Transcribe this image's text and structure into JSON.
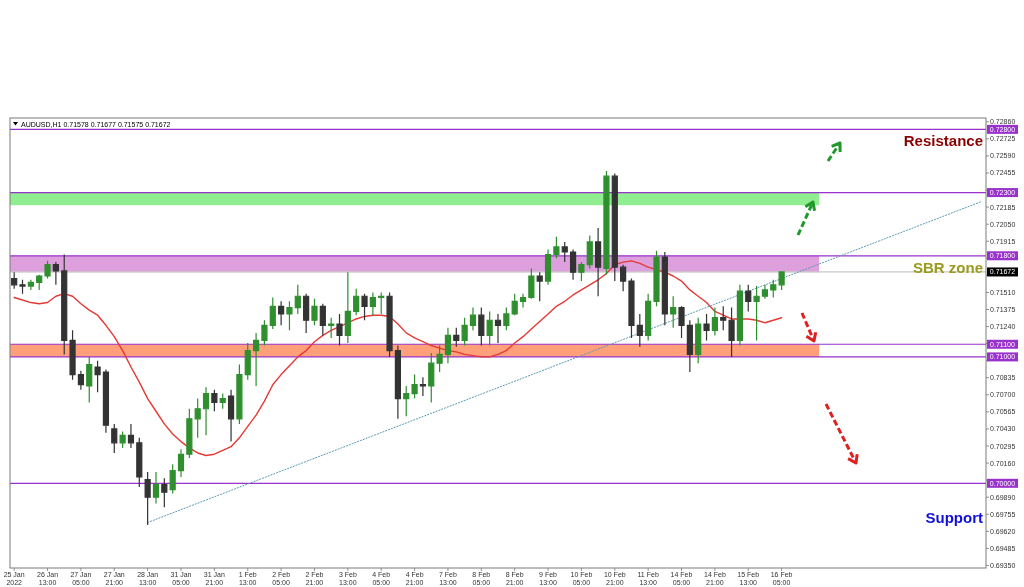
{
  "chart_data": {
    "type": "candlestick",
    "title": "AUDUSD,H1 0.71578 0.71677 0.71575 0.71672",
    "categories": [
      "25 Jan 2022",
      null,
      null,
      null,
      "26 Jan 13:00",
      null,
      null,
      null,
      "27 Jan 05:00",
      null,
      null,
      null,
      "27 Jan 21:00",
      null,
      null,
      null,
      "28 Jan 13:00",
      null,
      null,
      null,
      "31 Jan 05:00",
      null,
      null,
      null,
      "31 Jan 21:00",
      null,
      null,
      null,
      "1 Feb 13:00",
      null,
      null,
      null,
      "2 Feb 05:00",
      null,
      null,
      null,
      "2 Feb 21:00",
      null,
      null,
      null,
      "3 Feb 13:00",
      null,
      null,
      null,
      "4 Feb 05:00",
      null,
      null,
      null,
      "4 Feb 21:00",
      null,
      null,
      null,
      "7 Feb 13:00",
      null,
      null,
      null,
      "8 Feb 05:00",
      null,
      null,
      null,
      "8 Feb 21:00",
      null,
      null,
      null,
      "9 Feb 13:00",
      null,
      null,
      null,
      "10 Feb 05:00",
      null,
      null,
      null,
      "10 Feb 21:00",
      null,
      null,
      null,
      "11 Feb 13:00",
      null,
      null,
      null,
      "14 Feb 05:00",
      null,
      null,
      null,
      "14 Feb 21:00",
      null,
      null,
      null,
      "15 Feb 13:00",
      null,
      null,
      null,
      "16 Feb 05:00",
      null,
      null,
      null,
      null,
      null,
      null,
      null,
      null,
      null,
      null,
      null,
      null,
      null,
      null,
      null,
      null,
      null,
      null,
      null,
      null,
      null,
      null,
      null,
      null
    ],
    "ohlc": [
      [
        0.7162,
        0.7167,
        0.7154,
        0.7157
      ],
      [
        0.7157,
        0.7161,
        0.715,
        0.7156
      ],
      [
        0.7156,
        0.7161,
        0.7153,
        0.7159
      ],
      [
        0.7159,
        0.7165,
        0.7153,
        0.7164
      ],
      [
        0.7164,
        0.7176,
        0.7162,
        0.7173
      ],
      [
        0.7173,
        0.7175,
        0.7157,
        0.7168
      ],
      [
        0.7168,
        0.7181,
        0.7102,
        0.7113
      ],
      [
        0.7113,
        0.7121,
        0.7082,
        0.7086
      ],
      [
        0.7086,
        0.7089,
        0.7074,
        0.7078
      ],
      [
        0.7077,
        0.71,
        0.7064,
        0.7094
      ],
      [
        0.7092,
        0.7097,
        0.7072,
        0.7086
      ],
      [
        0.7088,
        0.709,
        0.704,
        0.7046
      ],
      [
        0.7043,
        0.7047,
        0.7024,
        0.7032
      ],
      [
        0.7032,
        0.7041,
        0.7028,
        0.7038
      ],
      [
        0.7038,
        0.7047,
        0.7028,
        0.7032
      ],
      [
        0.7032,
        0.7036,
        0.6997,
        0.7005
      ],
      [
        0.7003,
        0.7009,
        0.6967,
        0.6989
      ],
      [
        0.6989,
        0.7009,
        0.6984,
        0.6999
      ],
      [
        0.6999,
        0.7004,
        0.6981,
        0.6993
      ],
      [
        0.6995,
        0.7015,
        0.6992,
        0.701
      ],
      [
        0.701,
        0.7027,
        0.7005,
        0.7023
      ],
      [
        0.7023,
        0.7059,
        0.702,
        0.7051
      ],
      [
        0.7051,
        0.7067,
        0.7036,
        0.7059
      ],
      [
        0.7059,
        0.7076,
        0.7038,
        0.7071
      ],
      [
        0.7071,
        0.7074,
        0.7057,
        0.7064
      ],
      [
        0.7064,
        0.7071,
        0.7059,
        0.7067
      ],
      [
        0.7069,
        0.7074,
        0.7033,
        0.7051
      ],
      [
        0.7051,
        0.7094,
        0.7047,
        0.7086
      ],
      [
        0.7086,
        0.7111,
        0.7082,
        0.7105
      ],
      [
        0.7105,
        0.7119,
        0.7077,
        0.7113
      ],
      [
        0.7113,
        0.7129,
        0.7109,
        0.7125
      ],
      [
        0.7125,
        0.7147,
        0.7122,
        0.714
      ],
      [
        0.714,
        0.7144,
        0.7125,
        0.7134
      ],
      [
        0.7134,
        0.7144,
        0.7121,
        0.7139
      ],
      [
        0.7139,
        0.7157,
        0.7134,
        0.7148
      ],
      [
        0.7148,
        0.715,
        0.7119,
        0.7129
      ],
      [
        0.7129,
        0.7146,
        0.7125,
        0.714
      ],
      [
        0.714,
        0.7142,
        0.7117,
        0.7125
      ],
      [
        0.7125,
        0.7131,
        0.7115,
        0.7126
      ],
      [
        0.7126,
        0.7134,
        0.7109,
        0.7117
      ],
      [
        0.7117,
        0.7167,
        0.7111,
        0.7136
      ],
      [
        0.7136,
        0.7154,
        0.7133,
        0.7148
      ],
      [
        0.7148,
        0.715,
        0.7129,
        0.714
      ],
      [
        0.714,
        0.7151,
        0.7133,
        0.7147
      ],
      [
        0.7147,
        0.7151,
        0.7134,
        0.7148
      ],
      [
        0.7148,
        0.7151,
        0.71,
        0.7105
      ],
      [
        0.7105,
        0.7109,
        0.7051,
        0.7067
      ],
      [
        0.7067,
        0.7077,
        0.7053,
        0.7071
      ],
      [
        0.7071,
        0.7086,
        0.7067,
        0.7078
      ],
      [
        0.7078,
        0.7084,
        0.7069,
        0.7077
      ],
      [
        0.7077,
        0.7103,
        0.7064,
        0.7095
      ],
      [
        0.7095,
        0.7109,
        0.7088,
        0.7102
      ],
      [
        0.7102,
        0.7123,
        0.7095,
        0.7117
      ],
      [
        0.7117,
        0.7123,
        0.7108,
        0.7113
      ],
      [
        0.7113,
        0.7131,
        0.7109,
        0.7125
      ],
      [
        0.7125,
        0.7139,
        0.7121,
        0.7133
      ],
      [
        0.7133,
        0.7139,
        0.7109,
        0.7117
      ],
      [
        0.7117,
        0.7136,
        0.7109,
        0.7129
      ],
      [
        0.7129,
        0.7134,
        0.7111,
        0.7125
      ],
      [
        0.7125,
        0.7139,
        0.7121,
        0.7134
      ],
      [
        0.7134,
        0.715,
        0.7133,
        0.7144
      ],
      [
        0.7144,
        0.715,
        0.7139,
        0.7147
      ],
      [
        0.7147,
        0.717,
        0.7146,
        0.7164
      ],
      [
        0.7164,
        0.7167,
        0.7144,
        0.716
      ],
      [
        0.716,
        0.7185,
        0.7157,
        0.7181
      ],
      [
        0.7181,
        0.7195,
        0.7178,
        0.7187
      ],
      [
        0.7187,
        0.7191,
        0.7175,
        0.7183
      ],
      [
        0.7183,
        0.7185,
        0.7161,
        0.7167
      ],
      [
        0.7167,
        0.7175,
        0.716,
        0.7173
      ],
      [
        0.7173,
        0.7196,
        0.717,
        0.7191
      ],
      [
        0.7191,
        0.7202,
        0.7148,
        0.7171
      ],
      [
        0.717,
        0.7247,
        0.7165,
        0.7243
      ],
      [
        0.7243,
        0.7245,
        0.716,
        0.7171
      ],
      [
        0.7171,
        0.7173,
        0.7152,
        0.716
      ],
      [
        0.716,
        0.7162,
        0.7115,
        0.7125
      ],
      [
        0.7125,
        0.7134,
        0.7108,
        0.7117
      ],
      [
        0.7117,
        0.715,
        0.7113,
        0.7144
      ],
      [
        0.7144,
        0.7184,
        0.714,
        0.7179
      ],
      [
        0.7179,
        0.7183,
        0.7125,
        0.7134
      ],
      [
        0.7134,
        0.7148,
        0.7123,
        0.7139
      ],
      [
        0.7139,
        0.714,
        0.7115,
        0.7125
      ],
      [
        0.7125,
        0.7129,
        0.7088,
        0.7102
      ],
      [
        0.7102,
        0.7131,
        0.7095,
        0.7126
      ],
      [
        0.7126,
        0.7134,
        0.7113,
        0.7121
      ],
      [
        0.7121,
        0.7139,
        0.7117,
        0.7131
      ],
      [
        0.7131,
        0.714,
        0.7121,
        0.7129
      ],
      [
        0.7129,
        0.7139,
        0.71,
        0.7113
      ],
      [
        0.7113,
        0.7157,
        0.7109,
        0.7152
      ],
      [
        0.7152,
        0.7157,
        0.7136,
        0.7144
      ],
      [
        0.7144,
        0.7156,
        0.7113,
        0.7148
      ],
      [
        0.7148,
        0.7157,
        0.7146,
        0.7153
      ],
      [
        0.7153,
        0.7161,
        0.7147,
        0.7157
      ],
      [
        0.7157,
        0.71677,
        0.7153,
        0.71672
      ],
      null,
      null,
      null,
      null,
      null,
      null,
      null,
      null,
      null,
      null,
      null,
      null,
      null,
      null,
      null,
      null,
      null,
      null,
      null,
      null,
      null,
      null,
      null,
      null
    ],
    "series": [
      {
        "type": "line",
        "color": "#e53935",
        "values": [
          0.7147,
          0.7145,
          0.7143,
          0.7142,
          0.7143,
          0.7148,
          0.715,
          0.7148,
          0.7142,
          0.7137,
          0.7133,
          0.7125,
          0.7116,
          0.7105,
          0.7092,
          0.708,
          0.7067,
          0.7057,
          0.7047,
          0.7039,
          0.7033,
          0.7028,
          0.7024,
          0.7022,
          0.7023,
          0.7026,
          0.7029,
          0.7036,
          0.7045,
          0.7054,
          0.7065,
          0.7078,
          0.7086,
          0.7093,
          0.71,
          0.7105,
          0.7112,
          0.7117,
          0.7121,
          0.7124,
          0.7127,
          0.713,
          0.7132,
          0.7133,
          0.7133,
          0.7132,
          0.7126,
          0.7119,
          0.7115,
          0.7112,
          0.7109,
          0.7107,
          0.7105,
          0.7104,
          0.7102,
          0.7101,
          0.71,
          0.71,
          0.7102,
          0.7105,
          0.7111,
          0.7116,
          0.7122,
          0.7128,
          0.7134,
          0.714,
          0.7144,
          0.7149,
          0.7153,
          0.7157,
          0.7161,
          0.7166,
          0.7173,
          0.7175,
          0.7176,
          0.7174,
          0.7171,
          0.7169,
          0.7167,
          0.7164,
          0.716,
          0.7153,
          0.7148,
          0.7143,
          0.7136,
          0.7133,
          0.713,
          0.713,
          0.713,
          0.7129,
          0.7127,
          0.7129,
          0.7131,
          null,
          null,
          null,
          null,
          null,
          null,
          null,
          null,
          null,
          null,
          null,
          null,
          null,
          null,
          null,
          null,
          null,
          null,
          null,
          null,
          null,
          null,
          null,
          null
        ]
      },
      {
        "type": "line",
        "color": "#5b9bb5",
        "line_style": "dotted",
        "values": [
          null,
          null,
          null,
          null,
          null,
          null,
          null,
          null,
          null,
          null,
          null,
          null,
          null,
          null,
          null,
          null,
          0.6969,
          null,
          null,
          null,
          null,
          null,
          null,
          null,
          null,
          null,
          null,
          null,
          null,
          null,
          null,
          null,
          null,
          null,
          null,
          null,
          null,
          null,
          null,
          null,
          null,
          null,
          null,
          null,
          null,
          null,
          null,
          null,
          null,
          null,
          null,
          null,
          null,
          null,
          null,
          null,
          null,
          null,
          null,
          null,
          null,
          null,
          null,
          null,
          null,
          null,
          null,
          null,
          null,
          null,
          null,
          null,
          null,
          null,
          null,
          null,
          null,
          null,
          null,
          null,
          null,
          null,
          null,
          null,
          null,
          null,
          null,
          null,
          null,
          null,
          null,
          null,
          null,
          null,
          null,
          null,
          null,
          null,
          null,
          null,
          null,
          null,
          null,
          null,
          null,
          null,
          null,
          null,
          null,
          null,
          null,
          null,
          null,
          null,
          null,
          null,
          0.7223
        ]
      }
    ],
    "ylim": [
      0.6933,
      0.7289
    ],
    "yticks": [
      {
        "value": 0.6935,
        "label": "0.69350"
      },
      {
        "value": 0.69485,
        "label": "0.69485"
      },
      {
        "value": 0.6962,
        "label": "0.69620"
      },
      {
        "value": 0.69755,
        "label": "0.69755"
      },
      {
        "value": 0.6989,
        "label": "0.69890"
      },
      {
        "value": 0.70025,
        "label": null
      },
      {
        "value": 0.7016,
        "label": "0.70160"
      },
      {
        "value": 0.70295,
        "label": "0.70295"
      },
      {
        "value": 0.7043,
        "label": "0.70430"
      },
      {
        "value": 0.70565,
        "label": "0.70565"
      },
      {
        "value": 0.707,
        "label": "0.70700"
      },
      {
        "value": 0.70835,
        "label": "0.70835"
      },
      {
        "value": 0.7097,
        "label": null
      },
      {
        "value": 0.71105,
        "label": null
      },
      {
        "value": 0.7124,
        "label": "0.71240"
      },
      {
        "value": 0.71375,
        "label": "0.71375"
      },
      {
        "value": 0.7151,
        "label": "0.71510"
      },
      {
        "value": 0.71645,
        "label": null
      },
      {
        "value": 0.7178,
        "label": null
      },
      {
        "value": 0.71915,
        "label": "0.71915"
      },
      {
        "value": 0.7205,
        "label": "0.72050"
      },
      {
        "value": 0.72185,
        "label": "0.72185"
      },
      {
        "value": 0.7232,
        "label": null
      },
      {
        "value": 0.72455,
        "label": "0.72455"
      },
      {
        "value": 0.7259,
        "label": "0.72590"
      },
      {
        "value": 0.72725,
        "label": "0.72725"
      },
      {
        "value": 0.7286,
        "label": "0.72860"
      }
    ],
    "bands": [
      {
        "axis": "y",
        "from": 0.722,
        "to": 0.723,
        "color": "#90ee90"
      },
      {
        "axis": "y",
        "from": 0.7167,
        "to": 0.718,
        "color": "#dda0dd"
      },
      {
        "axis": "y",
        "from": 0.71,
        "to": 0.711,
        "color": "#ffa07a"
      }
    ],
    "ref_lines": [
      {
        "axis": "y",
        "value": 0.728,
        "label": "0.72800",
        "color": "#9932cc"
      },
      {
        "axis": "y",
        "value": 0.723,
        "label": "0.72300",
        "color": "#9932cc"
      },
      {
        "axis": "y",
        "value": 0.718,
        "label": "0.71800",
        "color": "#9932cc"
      },
      {
        "axis": "y",
        "value": 0.71672,
        "label": "0.71672",
        "color": "#c8c8c8"
      },
      {
        "axis": "y",
        "value": 0.711,
        "label": "0.71100",
        "color": "#9932cc"
      },
      {
        "axis": "y",
        "value": 0.71,
        "label": "0.71000",
        "color": "#9932cc"
      },
      {
        "axis": "y",
        "value": 0.7,
        "label": "0.70000",
        "color": "#9932cc"
      }
    ],
    "annotations": [
      "Resistance",
      "SBR zone",
      "Support"
    ]
  }
}
